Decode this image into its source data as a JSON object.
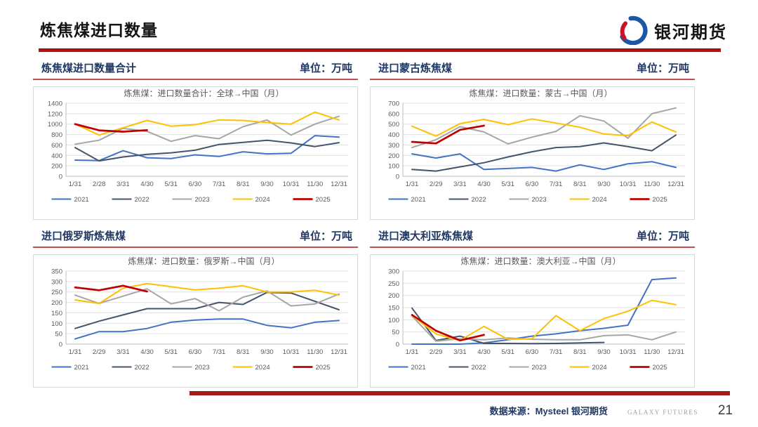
{
  "header": {
    "title": "炼焦煤进口数量",
    "logo_text": "银河期货"
  },
  "footer": {
    "source": "数据来源：Mysteel 银河期货",
    "brand": "GALAXY FUTURES",
    "page": "21"
  },
  "series_colors": {
    "2021": "#4472C4",
    "2022": "#44546A",
    "2023": "#A6A6A6",
    "2024": "#FFC000",
    "2025": "#C00000"
  },
  "panels": [
    {
      "header": "炼焦煤进口数量合计",
      "unit": "单位：万吨"
    },
    {
      "header": "进口蒙古炼焦煤",
      "unit": "单位：万吨"
    },
    {
      "header": "进口俄罗斯炼焦煤",
      "unit": "单位：万吨"
    },
    {
      "header": "进口澳大利亚炼焦煤",
      "unit": "单位：万吨"
    }
  ],
  "chart_data": [
    {
      "type": "line",
      "title": "炼焦煤：进口数量合计：全球→中国（月）",
      "x_labels": [
        "1/31",
        "2/28",
        "3/31",
        "4/30",
        "5/31",
        "6/30",
        "7/31",
        "8/31",
        "9/30",
        "10/31",
        "11/30",
        "12/31"
      ],
      "ylim": [
        0,
        1400
      ],
      "ytick": 200,
      "xlabel": "",
      "ylabel": "",
      "grid": true,
      "legend_position": "bottom",
      "series": [
        {
          "name": "2021",
          "values": [
            310,
            300,
            490,
            355,
            340,
            410,
            380,
            470,
            430,
            440,
            780,
            750
          ]
        },
        {
          "name": "2022",
          "values": [
            550,
            295,
            370,
            420,
            450,
            500,
            610,
            650,
            690,
            640,
            570,
            645
          ]
        },
        {
          "name": "2023",
          "values": [
            615,
            690,
            920,
            860,
            670,
            780,
            720,
            950,
            1080,
            790,
            1000,
            1150
          ]
        },
        {
          "name": "2024",
          "values": [
            1000,
            790,
            930,
            1070,
            960,
            990,
            1080,
            1070,
            1030,
            1000,
            1230,
            1080
          ]
        },
        {
          "name": "2025",
          "values": [
            1000,
            880,
            855,
            885
          ]
        }
      ]
    },
    {
      "type": "line",
      "title": "炼焦煤：进口数量：蒙古→中国（月）",
      "x_labels": [
        "1/31",
        "2/29",
        "3/31",
        "4/30",
        "5/31",
        "6/30",
        "7/31",
        "8/31",
        "9/30",
        "10/31",
        "11/30",
        "12/31"
      ],
      "ylim": [
        0,
        700
      ],
      "ytick": 100,
      "xlabel": "",
      "ylabel": "",
      "grid": true,
      "legend_position": "bottom",
      "series": [
        {
          "name": "2021",
          "values": [
            215,
            175,
            215,
            65,
            75,
            85,
            50,
            110,
            65,
            120,
            140,
            85
          ]
        },
        {
          "name": "2022",
          "values": [
            65,
            50,
            90,
            130,
            185,
            235,
            275,
            285,
            320,
            285,
            245,
            395
          ]
        },
        {
          "name": "2023",
          "values": [
            275,
            350,
            475,
            425,
            310,
            375,
            430,
            580,
            530,
            365,
            600,
            655
          ]
        },
        {
          "name": "2024",
          "values": [
            480,
            385,
            505,
            545,
            495,
            550,
            510,
            470,
            405,
            390,
            520,
            425
          ]
        },
        {
          "name": "2025",
          "values": [
            330,
            315,
            445,
            485
          ]
        }
      ]
    },
    {
      "type": "line",
      "title": "炼焦煤：进口数量：俄罗斯→中国（月）",
      "x_labels": [
        "1/31",
        "2/29",
        "3/31",
        "4/30",
        "5/31",
        "6/30",
        "7/31",
        "8/31",
        "9/30",
        "10/31",
        "11/30",
        "12/31"
      ],
      "ylim": [
        0,
        350
      ],
      "ytick": 50,
      "xlabel": "",
      "ylabel": "",
      "grid": true,
      "legend_position": "bottom",
      "series": [
        {
          "name": "2021",
          "values": [
            25,
            60,
            60,
            75,
            105,
            115,
            120,
            120,
            90,
            78,
            105,
            113
          ]
        },
        {
          "name": "2022",
          "values": [
            75,
            110,
            140,
            170,
            170,
            170,
            200,
            190,
            248,
            245,
            205,
            165
          ]
        },
        {
          "name": "2023",
          "values": [
            235,
            195,
            230,
            265,
            193,
            218,
            160,
            225,
            255,
            183,
            193,
            240
          ]
        },
        {
          "name": "2024",
          "values": [
            212,
            195,
            268,
            290,
            275,
            260,
            268,
            280,
            250,
            250,
            258,
            235
          ]
        },
        {
          "name": "2025",
          "values": [
            272,
            258,
            280,
            252
          ]
        }
      ]
    },
    {
      "type": "line",
      "title": "炼焦煤：进口数量：澳大利亚→中国（月）",
      "x_labels": [
        "1/31",
        "2/29",
        "3/31",
        "4/30",
        "5/31",
        "6/30",
        "7/31",
        "8/31",
        "9/30",
        "10/31",
        "11/30",
        "12/31"
      ],
      "ylim": [
        0,
        300
      ],
      "ytick": 50,
      "xlabel": "",
      "ylabel": "",
      "grid": true,
      "legend_position": "bottom",
      "series": [
        {
          "name": "2021",
          "values": [
            0,
            0,
            0,
            5,
            18,
            33,
            42,
            55,
            65,
            78,
            265,
            272
          ]
        },
        {
          "name": "2022",
          "values": [
            148,
            15,
            33,
            3,
            3,
            2,
            3,
            5,
            7
          ]
        },
        {
          "name": "2023",
          "values": [
            115,
            12,
            22,
            18,
            25,
            20,
            18,
            18,
            35,
            38,
            18,
            50
          ]
        },
        {
          "name": "2024",
          "values": [
            118,
            42,
            15,
            73,
            20,
            22,
            117,
            55,
            105,
            135,
            180,
            162
          ]
        },
        {
          "name": "2025",
          "values": [
            120,
            55,
            15,
            38
          ]
        }
      ]
    }
  ]
}
